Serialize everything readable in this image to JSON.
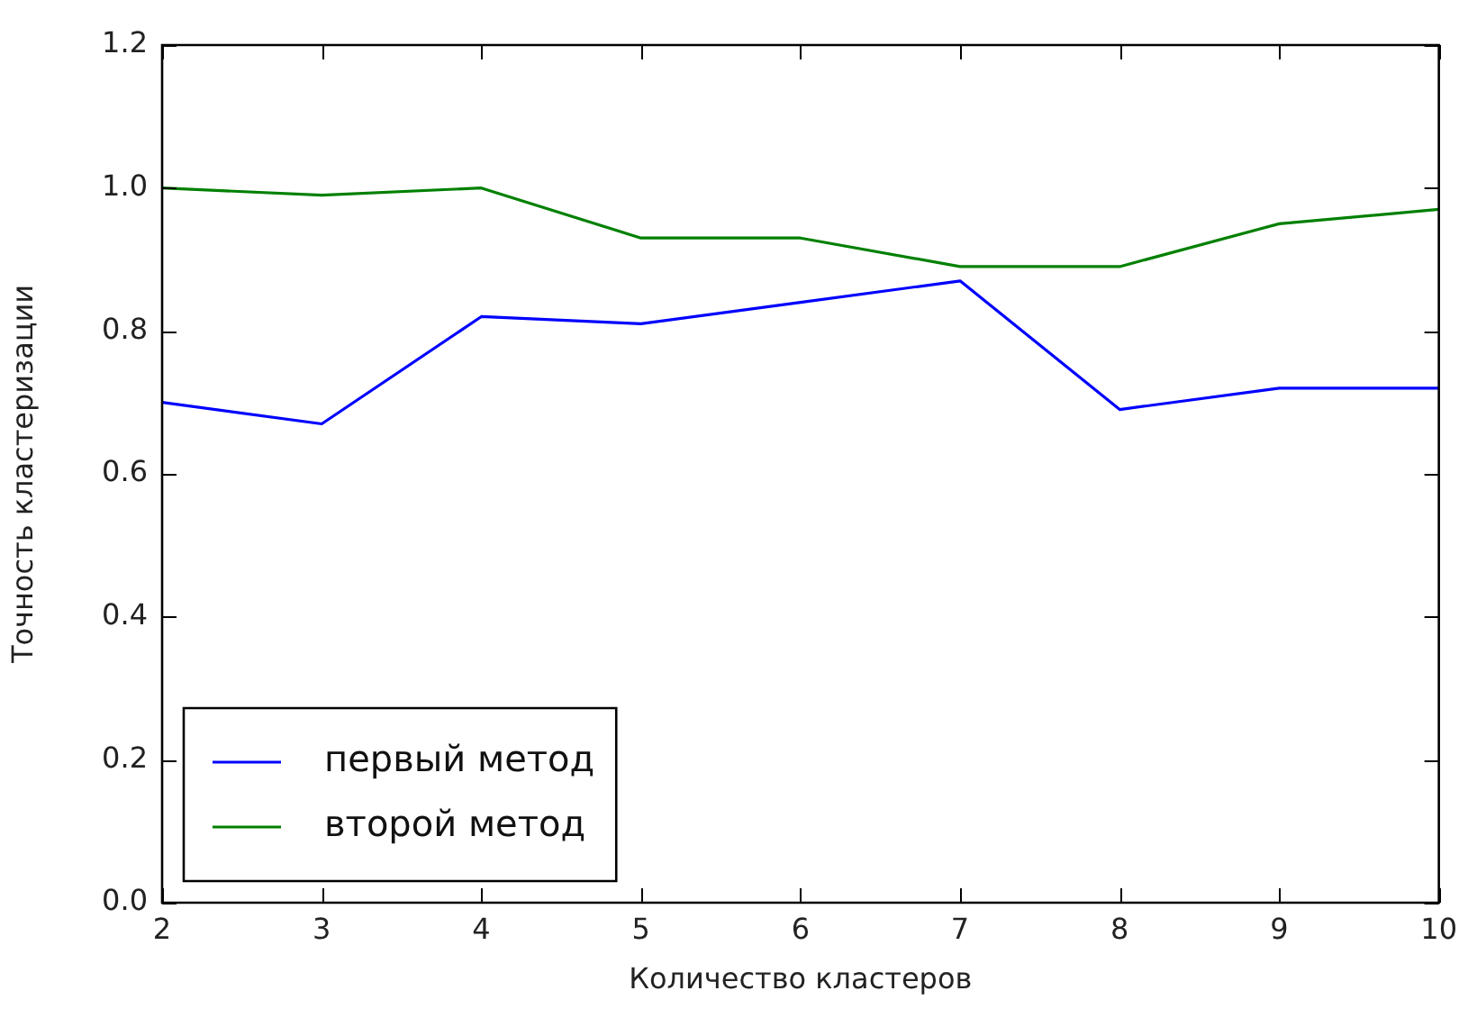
{
  "chart_data": {
    "type": "line",
    "xlabel": "Количество кластеров",
    "ylabel": "Точность кластеризации",
    "x": [
      2,
      3,
      4,
      5,
      6,
      7,
      8,
      9,
      10
    ],
    "series": [
      {
        "name": "первый метод",
        "color": "#0000ff",
        "values": [
          0.7,
          0.67,
          0.82,
          0.81,
          0.84,
          0.87,
          0.69,
          0.72,
          0.72
        ]
      },
      {
        "name": "второй метод",
        "color": "#008000",
        "values": [
          1.0,
          0.99,
          1.0,
          0.93,
          0.93,
          0.89,
          0.89,
          0.95,
          0.97
        ]
      }
    ],
    "xlim": [
      2,
      10
    ],
    "xticks": [
      2,
      3,
      4,
      5,
      6,
      7,
      8,
      9,
      10
    ],
    "ylim": [
      0,
      1.2
    ],
    "yticks": [
      {
        "value": 0,
        "label": "0.0"
      },
      0.2,
      0.4,
      0.6,
      0.8,
      {
        "value": 1,
        "label": "1.0"
      },
      1.2
    ],
    "legend": "bottom left",
    "marker": "none",
    "line_style": "solid"
  }
}
